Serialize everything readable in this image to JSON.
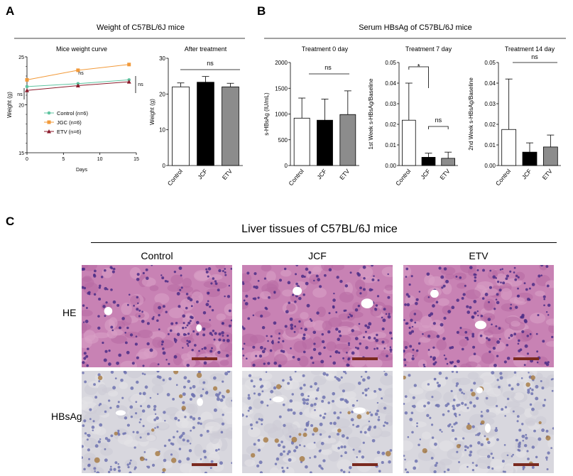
{
  "panels": {
    "a": "A",
    "b": "B",
    "c": "C"
  },
  "panel_a": {
    "header": "Weight of C57BL/6J mice"
  },
  "panel_b": {
    "header": "Serum HBsAg of C57BL/6J mice"
  },
  "panel_c": {
    "header": "Liver tissues of C57BL/6J mice",
    "columns": [
      "Control",
      "JCF",
      "ETV"
    ],
    "rows": [
      "HE",
      "HBsAg"
    ]
  },
  "colors": {
    "control": "#5fc4a0",
    "jgc": "#f29a3a",
    "etv": "#8b1a2b",
    "bar_white": "#ffffff",
    "bar_black": "#000000",
    "bar_gray": "#8c8c8c",
    "he_bg": "#c882b4",
    "ihc_bg": "#d8d7de"
  },
  "chart_data": [
    {
      "type": "line",
      "title": "Mice weight curve",
      "xlabel": "Days",
      "ylabel": "Weight (g)",
      "xlim": [
        0,
        15
      ],
      "ylim": [
        15,
        25
      ],
      "xticks": [
        "0",
        "5",
        "10",
        "15"
      ],
      "yticks": [
        "15",
        "20",
        "25"
      ],
      "annotations": [
        "ns",
        "ns",
        "ns"
      ],
      "x": [
        0,
        7,
        14
      ],
      "series": [
        {
          "name": "Control (n=6)",
          "values": [
            21.9,
            22.2,
            22.6
          ],
          "marker": "circle"
        },
        {
          "name": "JGC (n=6)",
          "values": [
            22.6,
            23.6,
            24.2
          ],
          "marker": "square"
        },
        {
          "name": "ETV (n=6)",
          "values": [
            21.5,
            22.0,
            22.4
          ],
          "marker": "triangle"
        }
      ]
    },
    {
      "type": "bar",
      "title": "After treatment",
      "ylabel": "Weight (g)",
      "ylim": [
        0,
        30
      ],
      "yticks": [
        "0",
        "10",
        "20",
        "30"
      ],
      "categories": [
        "Control",
        "JCF",
        "ETV"
      ],
      "values": [
        22,
        23.3,
        22
      ],
      "errors": [
        1.1,
        1.6,
        1.0
      ],
      "annotations": [
        "ns"
      ]
    },
    {
      "type": "bar",
      "title": "Treatment 0 day",
      "ylabel": "s-HBsAg (IU/mL)",
      "ylim": [
        0,
        2000
      ],
      "yticks": [
        "0",
        "500",
        "1000",
        "1500",
        "2000"
      ],
      "categories": [
        "Control",
        "JCF",
        "ETV"
      ],
      "values": [
        920,
        880,
        990
      ],
      "errors": [
        390,
        410,
        460
      ],
      "annotations": [
        "ns"
      ]
    },
    {
      "type": "bar",
      "title": "Treatment 7 day",
      "ylabel": "1st Week s-HBsAg/Baseline",
      "ylim": [
        0,
        0.05
      ],
      "yticks": [
        "0.00",
        "0.01",
        "0.02",
        "0.03",
        "0.04",
        "0.05"
      ],
      "categories": [
        "Control",
        "JCF",
        "ETV"
      ],
      "values": [
        0.022,
        0.004,
        0.0035
      ],
      "errors": [
        0.018,
        0.002,
        0.003
      ],
      "annotations": [
        "*",
        "ns"
      ]
    },
    {
      "type": "bar",
      "title": "Treatment 14 day",
      "ylabel": "2nd Week s-HBsAg/Baseline",
      "ylim": [
        0,
        0.05
      ],
      "yticks": [
        "0.00",
        "0.01",
        "0.02",
        "0.03",
        "0.04",
        "0.05"
      ],
      "categories": [
        "Control",
        "JCF",
        "ETV"
      ],
      "values": [
        0.0175,
        0.0065,
        0.009
      ],
      "errors": [
        0.0245,
        0.0045,
        0.0058
      ],
      "annotations": [
        "ns"
      ]
    }
  ]
}
